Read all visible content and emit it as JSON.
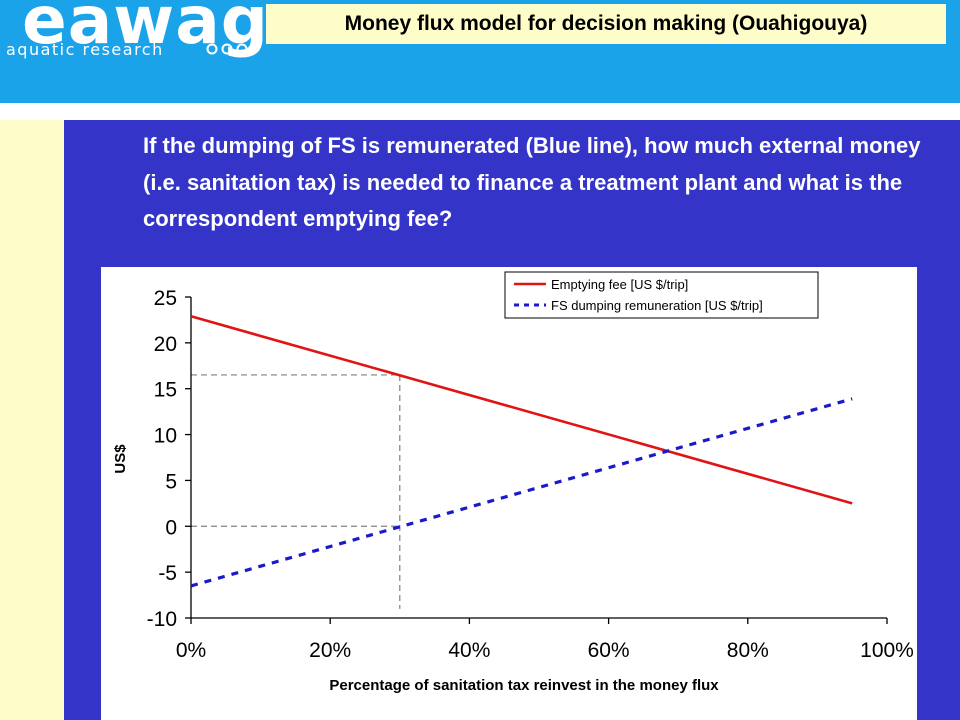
{
  "header": {
    "logo_word": "eawag",
    "logo_sub": "aquatic research",
    "title": "Money flux model for decision making (Ouahigouya)"
  },
  "question": "If the dumping of FS is remunerated (Blue line), how much external money (i.e. sanitation tax) is needed to finance a treatment plant and what is the correspondent emptying fee?",
  "colors": {
    "header_bg": "#1ba3ea",
    "title_box_bg": "#fefdc9",
    "sidebar_bg": "#fefdc9",
    "main_bg": "#3434c9",
    "emptying_fee_line": "#e01414",
    "remuneration_line": "#1a1acc",
    "guide_line": "#808080"
  },
  "chart_data": {
    "type": "line",
    "xlabel": "Percentage of sanitation tax reinvest in the money flux",
    "ylabel": "US$",
    "xlim": [
      0,
      100
    ],
    "ylim": [
      -10,
      25
    ],
    "x_ticks": [
      0,
      20,
      40,
      60,
      80,
      100
    ],
    "x_tick_labels": [
      "0%",
      "20%",
      "40%",
      "60%",
      "80%",
      "100%"
    ],
    "y_ticks": [
      25,
      20,
      15,
      10,
      5,
      0,
      -5,
      -10
    ],
    "y_tick_labels": [
      "25",
      "20",
      "15",
      "10",
      "5",
      "0",
      "-5",
      "-10"
    ],
    "grid": false,
    "legend_position": "top-right",
    "series": [
      {
        "name": "Emptying fee [US $/trip]",
        "style": "solid",
        "color": "#e01414",
        "x": [
          0,
          95
        ],
        "y": [
          22.9,
          2.5
        ]
      },
      {
        "name": "FS dumping remuneration [US $/trip]",
        "style": "dashed",
        "color": "#1a1acc",
        "x": [
          0,
          95
        ],
        "y": [
          -6.5,
          13.9
        ]
      }
    ],
    "guides": {
      "x": 30,
      "levels": [
        16.5,
        0
      ],
      "bottom": -9
    }
  }
}
